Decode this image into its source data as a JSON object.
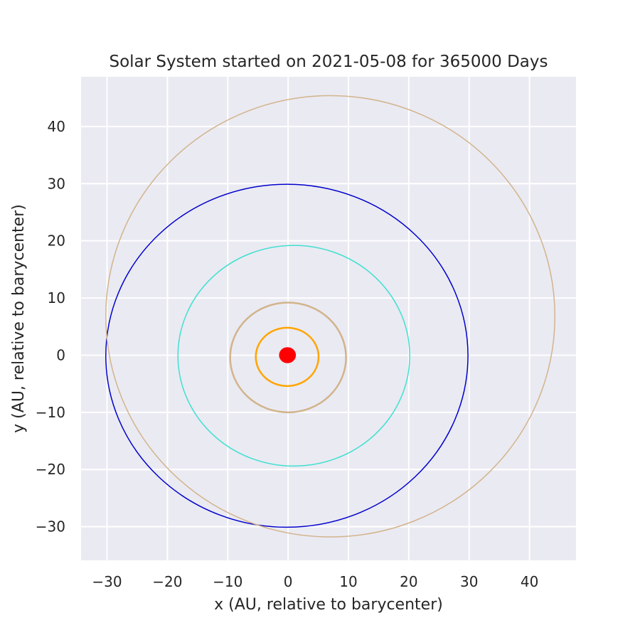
{
  "chart_data": {
    "type": "line",
    "title": "Solar System started on 2021-05-08 for 365000 Days",
    "xlabel": "x (AU, relative to barycenter)",
    "ylabel": "y (AU, relative to barycenter)",
    "xlim": [
      -34.3,
      47.7
    ],
    "ylim": [
      -35.9,
      48.7
    ],
    "xticks": [
      -30,
      -20,
      -10,
      0,
      10,
      20,
      30,
      40
    ],
    "yticks": [
      -30,
      -20,
      -10,
      0,
      10,
      20,
      30,
      40
    ],
    "xtick_labels": [
      "−30",
      "−20",
      "−10",
      "0",
      "10",
      "20",
      "30",
      "40"
    ],
    "ytick_labels": [
      "−30",
      "−20",
      "−10",
      "0",
      "10",
      "20",
      "30",
      "40"
    ],
    "grid": true,
    "background": "#eaeaf2",
    "series": [
      {
        "color": "#ff0000",
        "center": [
          -0.1,
          0.0
        ],
        "radius": 1.4,
        "fill": true
      },
      {
        "color": "#ffa500",
        "center": [
          -0.15,
          -0.3
        ],
        "rx": 5.2,
        "ry": 5.1,
        "width": 2.5
      },
      {
        "color": "#d2b48c",
        "center": [
          0.0,
          -0.4
        ],
        "rx": 9.6,
        "ry": 9.6,
        "width": 2.5
      },
      {
        "color": "#40e0d0",
        "center": [
          0.95,
          -0.1
        ],
        "rx": 19.2,
        "ry": 19.3,
        "width": 1.5
      },
      {
        "color": "#0000cd",
        "center": [
          -0.2,
          -0.1
        ],
        "rx": 30.0,
        "ry": 30.0,
        "width": 1.5
      },
      {
        "color": "#d2b48c",
        "center": [
          7.0,
          6.8
        ],
        "rx": 37.2,
        "ry": 38.6,
        "width": 1.5
      }
    ]
  }
}
